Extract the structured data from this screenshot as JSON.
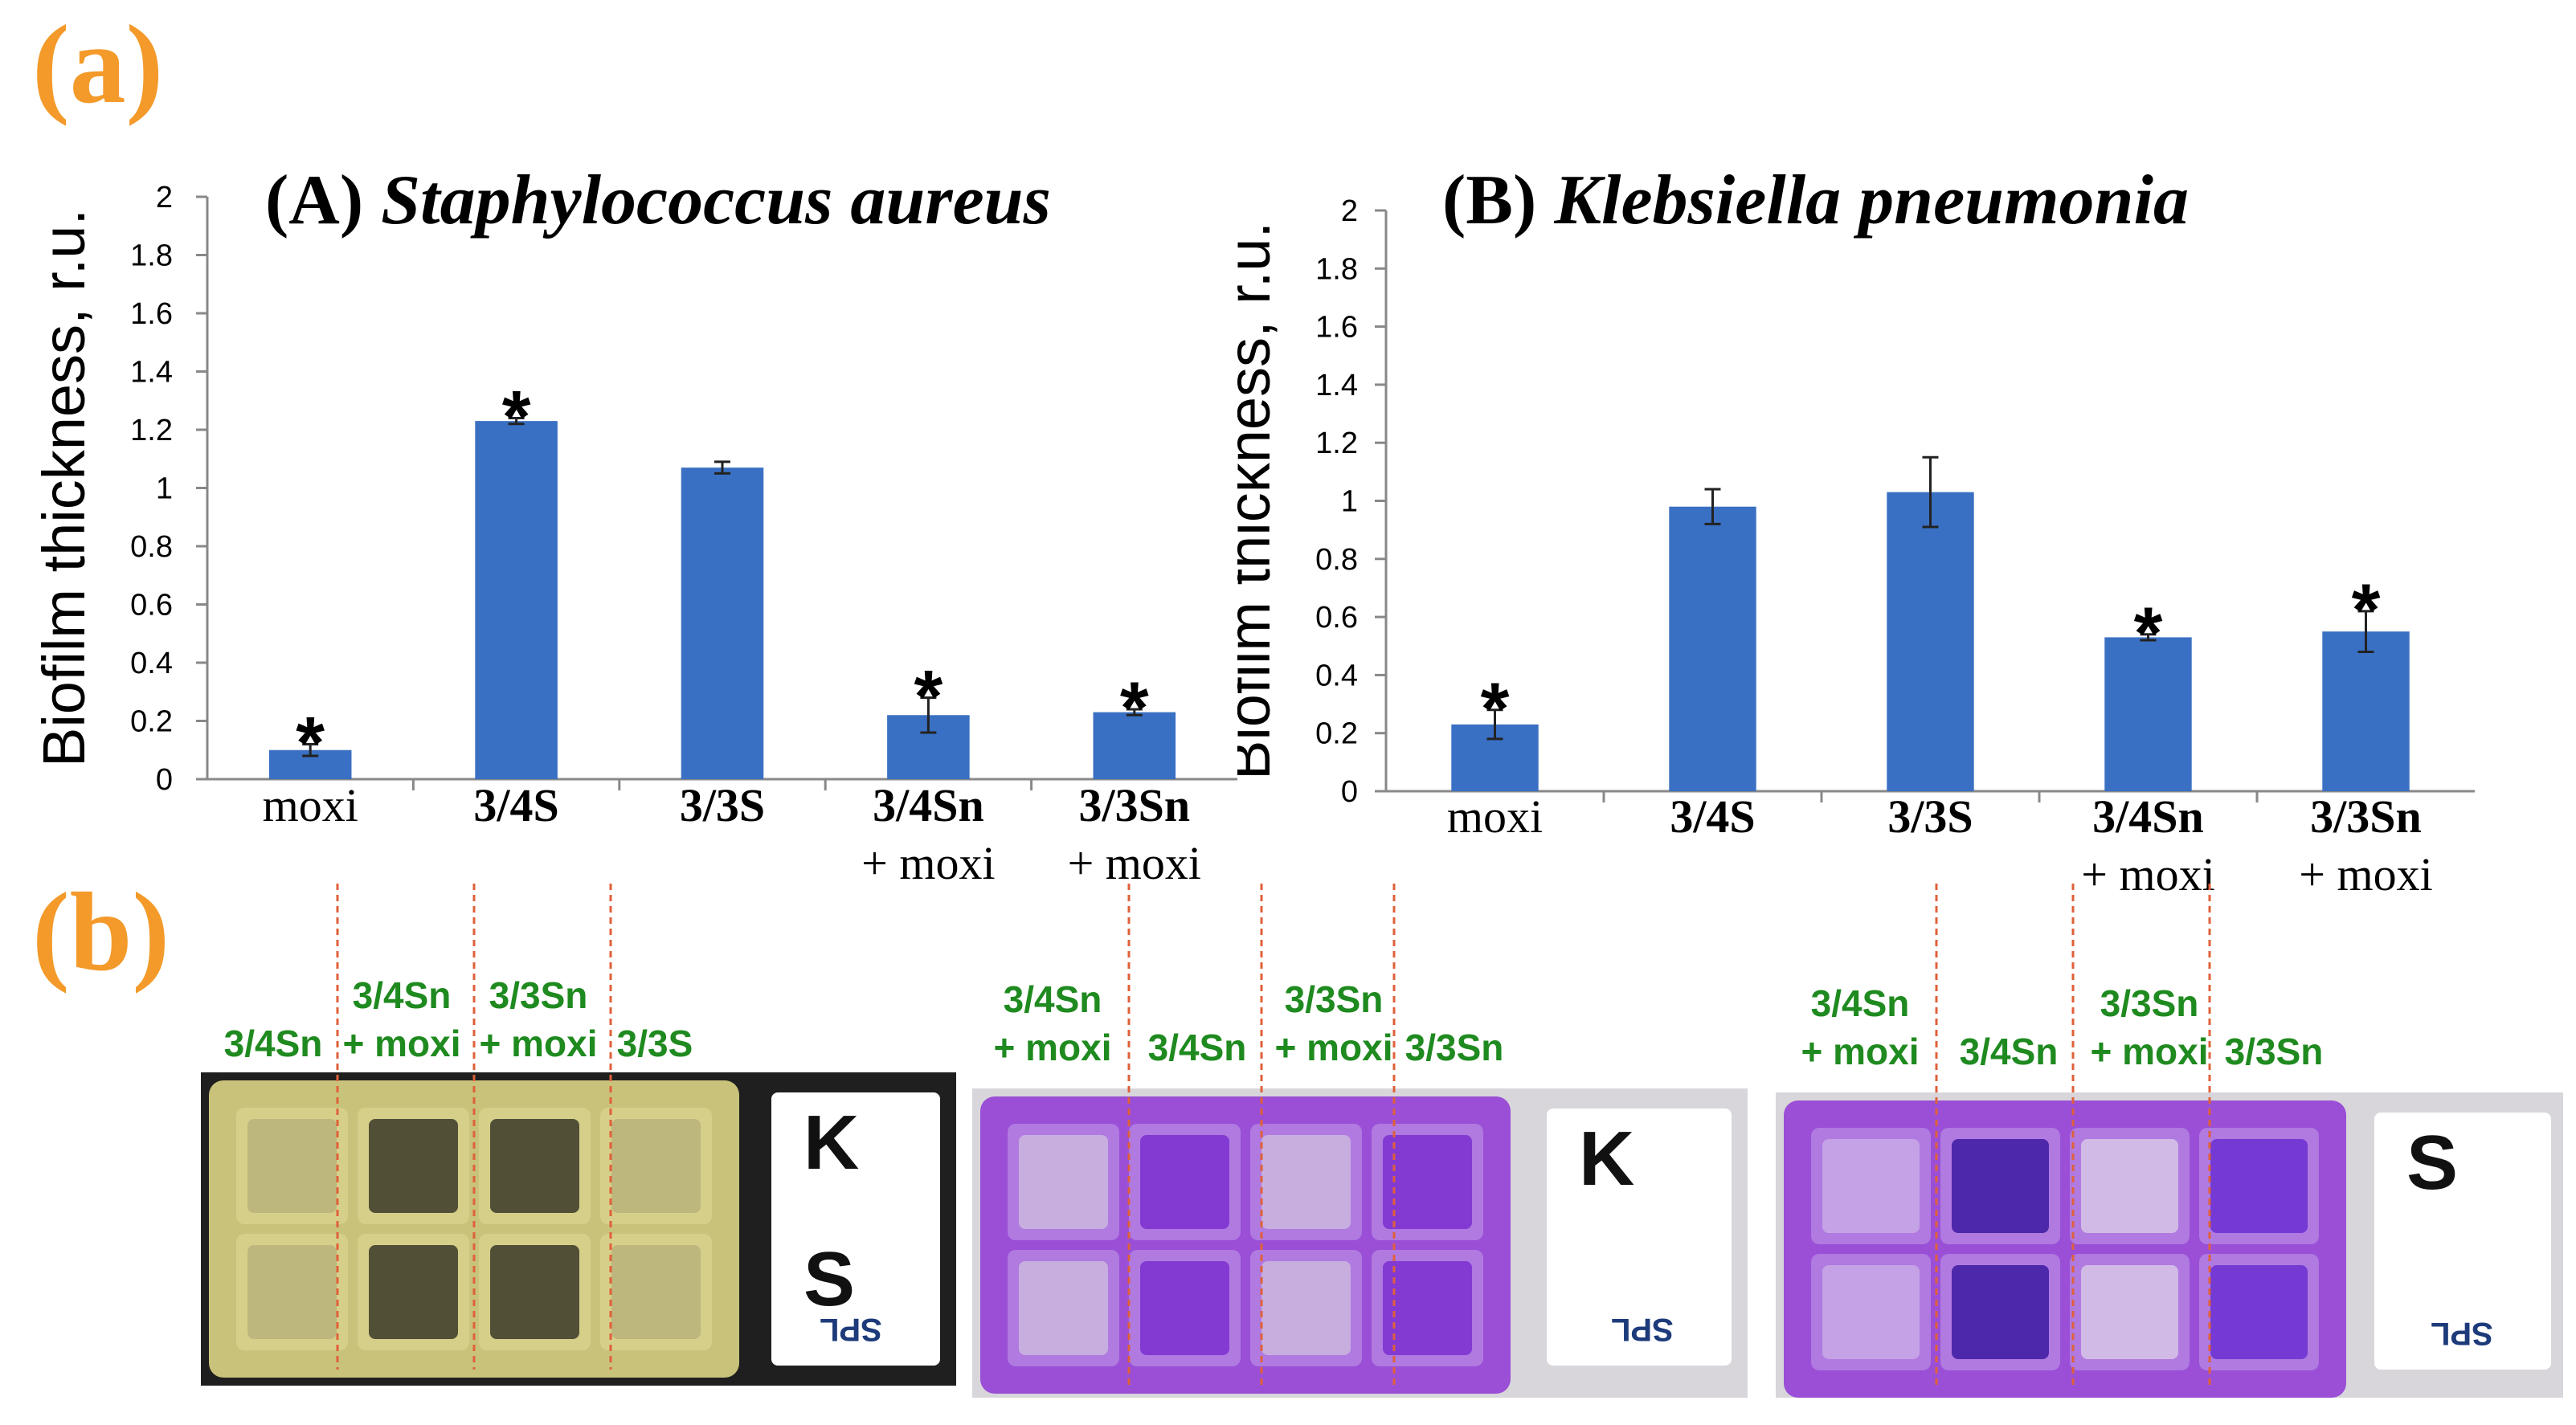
{
  "panel_labels": {
    "a": "(a)",
    "b": "(b)"
  },
  "chart_data": [
    {
      "type": "bar",
      "panel": "(A)",
      "organism": "Staphylococcus aureus",
      "ylabel": "Biofilm thickness, r.u.",
      "ylim": [
        0,
        2
      ],
      "yticks": [
        "0",
        "0.2",
        "0.4",
        "0.6",
        "0.8",
        "1",
        "1.2",
        "1.4",
        "1.6",
        "1.8",
        "2"
      ],
      "categories": [
        [
          "moxi"
        ],
        [
          "3/4S"
        ],
        [
          "3/3S"
        ],
        [
          "3/4Sn",
          "+ moxi"
        ],
        [
          "3/3Sn",
          "+ moxi"
        ]
      ],
      "values": [
        0.1,
        1.23,
        1.07,
        0.22,
        0.23
      ],
      "errors": [
        0.02,
        0.01,
        0.02,
        0.06,
        0.01
      ],
      "significant": [
        true,
        true,
        false,
        true,
        true
      ],
      "marker": "*",
      "bar_color": "#3a70c3"
    },
    {
      "type": "bar",
      "panel": "(B)",
      "organism": "Klebsiella pneumonia",
      "ylabel": "Biofilm thickness, r.u.",
      "ylim": [
        0,
        2
      ],
      "yticks": [
        "0",
        "0.2",
        "0.4",
        "0.6",
        "0.8",
        "1",
        "1.2",
        "1.4",
        "1.6",
        "1.8",
        "2"
      ],
      "categories": [
        [
          "moxi"
        ],
        [
          "3/4S"
        ],
        [
          "3/3S"
        ],
        [
          "3/4Sn",
          "+ moxi"
        ],
        [
          "3/3Sn",
          "+ moxi"
        ]
      ],
      "values": [
        0.23,
        0.98,
        1.03,
        0.53,
        0.55
      ],
      "errors": [
        0.05,
        0.06,
        0.12,
        0.01,
        0.07
      ],
      "significant": [
        true,
        false,
        false,
        true,
        true
      ],
      "marker": "*",
      "bar_color": "#3a70c3"
    }
  ],
  "photos": [
    {
      "name": "photo-yellow",
      "colors": {
        "frame": "#1f1f1f",
        "plate": "#c9c27a",
        "well": "#d6cf8a",
        "card": "#ffffff"
      },
      "well_tints": [
        "#b9b27a",
        "#3a3a28",
        "#3a3a28",
        "#b9b27a"
      ],
      "labels": [
        [
          "3/4Sn"
        ],
        [
          "3/4Sn",
          "+ moxi"
        ],
        [
          "3/3Sn",
          "+ moxi"
        ],
        [
          "3/3S"
        ]
      ],
      "card_letters": [
        "K",
        "S"
      ],
      "brand": "SPL"
    },
    {
      "name": "photo-purple-k",
      "colors": {
        "frame": "#d8d6da",
        "plate": "#9a4fd6",
        "well": "#b07ae0",
        "card": "#ffffff"
      },
      "well_tints": [
        "#cbb7de",
        "#7a2fd0",
        "#cbb7de",
        "#7a2fd0"
      ],
      "labels": [
        [
          "3/4Sn",
          "+ moxi"
        ],
        [
          "3/4Sn"
        ],
        [
          "3/3Sn",
          "+ moxi"
        ],
        [
          "3/3Sn"
        ]
      ],
      "card_letters": [
        "K"
      ],
      "brand": "SPL"
    },
    {
      "name": "photo-purple-s",
      "colors": {
        "frame": "#d8d6da",
        "plate": "#9a4fd6",
        "well": "#b07ae0",
        "card": "#ffffff"
      },
      "well_tints": [
        "#c9a9e6",
        "#3d1aa0",
        "#d8c6e6",
        "#6a2fd0"
      ],
      "labels": [
        [
          "3/4Sn",
          "+ moxi"
        ],
        [
          "3/4Sn"
        ],
        [
          "3/3Sn",
          "+ moxi"
        ],
        [
          "3/3Sn"
        ]
      ],
      "card_letters": [
        "S"
      ],
      "brand": "SPL"
    }
  ]
}
